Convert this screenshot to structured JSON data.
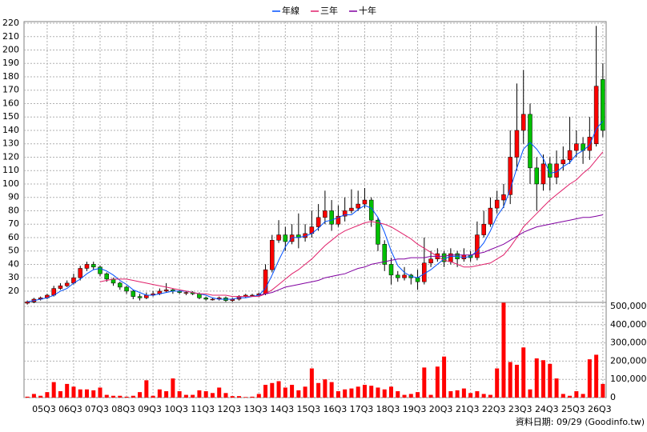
{
  "chart_data": [
    {
      "type": "candlestick",
      "up_color": "#ff0000",
      "down_color": "#00c000",
      "ylim": [
        11.6,
        221.2
      ],
      "yticks": [
        20,
        30,
        40,
        50,
        60,
        70,
        80,
        90,
        100,
        110,
        120,
        130,
        140,
        150,
        160,
        170,
        180,
        190,
        200,
        210,
        220
      ],
      "grid": true,
      "legend": "top",
      "open": [
        11,
        12,
        14,
        15,
        17,
        22,
        24,
        26,
        30,
        37,
        40,
        38,
        33,
        29,
        26,
        23,
        20,
        16,
        15,
        17,
        18,
        20,
        21,
        20,
        19,
        19,
        18,
        15,
        14,
        14,
        15,
        13,
        14,
        16,
        17,
        17,
        18,
        36,
        58,
        62,
        57,
        62,
        60,
        63,
        68,
        75,
        80,
        70,
        76,
        80,
        82,
        85,
        88,
        73,
        55,
        40,
        32,
        30,
        32,
        30,
        27,
        41,
        44,
        48,
        42,
        48,
        44,
        47,
        45,
        62,
        70,
        82,
        88,
        92,
        120,
        140,
        152,
        112,
        100,
        115,
        105,
        115,
        118,
        125,
        130,
        125,
        130,
        178
      ],
      "high": [
        13,
        15,
        16,
        18,
        24,
        26,
        28,
        33,
        39,
        42,
        42,
        39,
        34,
        30,
        27,
        24,
        21,
        18,
        19,
        20,
        22,
        26,
        22,
        21,
        20,
        20,
        19,
        16,
        15,
        16,
        16,
        15,
        17,
        18,
        18,
        19,
        40,
        62,
        73,
        68,
        70,
        78,
        70,
        80,
        85,
        95,
        88,
        84,
        90,
        96,
        95,
        97,
        90,
        75,
        58,
        45,
        35,
        38,
        33,
        36,
        60,
        50,
        52,
        50,
        52,
        50,
        52,
        50,
        72,
        80,
        90,
        95,
        100,
        140,
        175,
        185,
        160,
        120,
        122,
        120,
        125,
        128,
        150,
        140,
        135,
        150,
        218,
        190
      ],
      "low": [
        10,
        11,
        13,
        14,
        16,
        21,
        23,
        25,
        28,
        35,
        36,
        31,
        27,
        24,
        21,
        18,
        14,
        13,
        14,
        16,
        17,
        19,
        18,
        18,
        17,
        17,
        14,
        13,
        13,
        13,
        12,
        12,
        13,
        15,
        16,
        16,
        17,
        34,
        56,
        50,
        55,
        52,
        57,
        60,
        65,
        70,
        65,
        68,
        72,
        78,
        80,
        82,
        68,
        50,
        35,
        25,
        27,
        28,
        25,
        21,
        25,
        38,
        42,
        38,
        40,
        38,
        42,
        42,
        43,
        60,
        68,
        78,
        82,
        85,
        110,
        130,
        100,
        80,
        95,
        95,
        100,
        110,
        115,
        120,
        115,
        118,
        128,
        135
      ],
      "close": [
        12,
        14,
        15,
        17,
        22,
        24,
        26,
        30,
        37,
        40,
        38,
        33,
        29,
        26,
        23,
        20,
        16,
        15,
        17,
        18,
        20,
        21,
        20,
        19,
        19,
        18,
        15,
        14,
        14,
        15,
        13,
        14,
        16,
        17,
        17,
        18,
        36,
        58,
        62,
        57,
        62,
        60,
        63,
        68,
        75,
        80,
        70,
        76,
        80,
        82,
        85,
        88,
        73,
        55,
        40,
        32,
        30,
        32,
        30,
        27,
        41,
        44,
        48,
        42,
        48,
        44,
        47,
        45,
        62,
        70,
        82,
        88,
        92,
        120,
        140,
        152,
        112,
        100,
        115,
        105,
        115,
        118,
        125,
        130,
        125,
        135,
        173,
        140
      ],
      "series": [
        {
          "name": "年線",
          "color": "#0050ff",
          "values": [
            12,
            13,
            14,
            15,
            17,
            20,
            22,
            26,
            29,
            33,
            36,
            37,
            35,
            32,
            28,
            25,
            21,
            19,
            17,
            17,
            18,
            19,
            20,
            20,
            20,
            19,
            18,
            17,
            15,
            14,
            14,
            14,
            15,
            15,
            16,
            17,
            22,
            32,
            43,
            53,
            60,
            60,
            61,
            63,
            67,
            72,
            73,
            75,
            77,
            77,
            81,
            84,
            82,
            75,
            64,
            50,
            39,
            34,
            31,
            30,
            33,
            36,
            40,
            44,
            46,
            46,
            45,
            46,
            50,
            56,
            65,
            76,
            83,
            96,
            112,
            126,
            131,
            126,
            119,
            108,
            109,
            113,
            116,
            122,
            125,
            129,
            141,
            147
          ]
        },
        {
          "name": "三年",
          "color": "#e0206a",
          "values": [
            null,
            null,
            null,
            null,
            null,
            null,
            null,
            null,
            null,
            null,
            null,
            27,
            28,
            29,
            29,
            29,
            28,
            27,
            26,
            25,
            24,
            23,
            22,
            21,
            20,
            19,
            18,
            18,
            17,
            17,
            17,
            16,
            16,
            16,
            16,
            16,
            18,
            21,
            25,
            29,
            33,
            36,
            40,
            44,
            49,
            54,
            58,
            62,
            65,
            67,
            69,
            71,
            72,
            71,
            70,
            68,
            65,
            62,
            59,
            55,
            52,
            49,
            46,
            43,
            42,
            40,
            38,
            38,
            39,
            40,
            41,
            44,
            47,
            53,
            60,
            68,
            73,
            78,
            83,
            88,
            92,
            96,
            100,
            103,
            108,
            112,
            118,
            124
          ]
        },
        {
          "name": "十年",
          "color": "#8000a0",
          "values": [
            null,
            null,
            null,
            null,
            null,
            null,
            null,
            null,
            null,
            null,
            null,
            null,
            null,
            null,
            null,
            null,
            null,
            null,
            null,
            null,
            null,
            null,
            null,
            null,
            null,
            null,
            null,
            null,
            null,
            null,
            null,
            null,
            null,
            null,
            null,
            17,
            18,
            19,
            21,
            23,
            24,
            25,
            26,
            27,
            28,
            30,
            31,
            32,
            33,
            35,
            37,
            38,
            40,
            41,
            42,
            43,
            44,
            44,
            45,
            45,
            45,
            46,
            46,
            46,
            47,
            47,
            47,
            47,
            48,
            49,
            51,
            53,
            55,
            58,
            61,
            64,
            66,
            68,
            69,
            70,
            71,
            72,
            73,
            74,
            75,
            75,
            76,
            77
          ]
        }
      ]
    },
    {
      "type": "bar",
      "color": "#ff0000",
      "ylim": [
        0,
        522000
      ],
      "yticks": [
        0,
        {
          "value": 100000,
          "label": "100,000"
        },
        {
          "value": 200000,
          "label": "200,000"
        },
        {
          "value": 300000,
          "label": "300,000"
        },
        {
          "value": 400000,
          "label": "400,000"
        },
        {
          "value": 500000,
          "label": "500,000"
        }
      ],
      "grid": true,
      "categories": [
        null,
        null,
        null,
        "05Q3",
        null,
        null,
        null,
        "06Q3",
        null,
        null,
        null,
        "07Q3",
        null,
        null,
        null,
        "08Q3",
        null,
        null,
        null,
        "09Q3",
        null,
        null,
        null,
        "10Q3",
        null,
        null,
        null,
        "11Q3",
        null,
        null,
        null,
        "12Q3",
        null,
        null,
        null,
        "13Q3",
        null,
        null,
        null,
        "14Q3",
        null,
        null,
        null,
        "15Q3",
        null,
        null,
        null,
        "16Q3",
        null,
        null,
        null,
        "17Q3",
        null,
        null,
        null,
        "18Q3",
        null,
        null,
        null,
        "19Q3",
        null,
        null,
        null,
        "20Q3",
        null,
        null,
        null,
        "21Q3",
        null,
        null,
        null,
        "22Q3",
        null,
        null,
        null,
        "23Q3",
        null,
        null,
        null,
        "24Q3",
        null,
        null,
        null,
        "25Q3",
        null,
        null,
        null,
        "26Q3"
      ],
      "values": [
        5000,
        20000,
        10000,
        30000,
        85000,
        35000,
        75000,
        60000,
        45000,
        45000,
        40000,
        55000,
        15000,
        10000,
        10000,
        5000,
        10000,
        30000,
        95000,
        10000,
        45000,
        35000,
        105000,
        35000,
        15000,
        15000,
        40000,
        35000,
        25000,
        55000,
        25000,
        8000,
        8000,
        3000,
        5000,
        20000,
        70000,
        80000,
        90000,
        55000,
        70000,
        40000,
        60000,
        160000,
        80000,
        100000,
        85000,
        35000,
        45000,
        50000,
        60000,
        70000,
        65000,
        55000,
        45000,
        60000,
        35000,
        15000,
        20000,
        30000,
        165000,
        15000,
        170000,
        225000,
        35000,
        40000,
        50000,
        25000,
        35000,
        20000,
        15000,
        160000,
        520000,
        195000,
        180000,
        275000,
        45000,
        215000,
        205000,
        185000,
        105000,
        20000,
        10000,
        35000,
        20000,
        210000,
        235000,
        75000
      ],
      "note": "資料日期: 09/29  (Goodinfo.tw)"
    }
  ]
}
